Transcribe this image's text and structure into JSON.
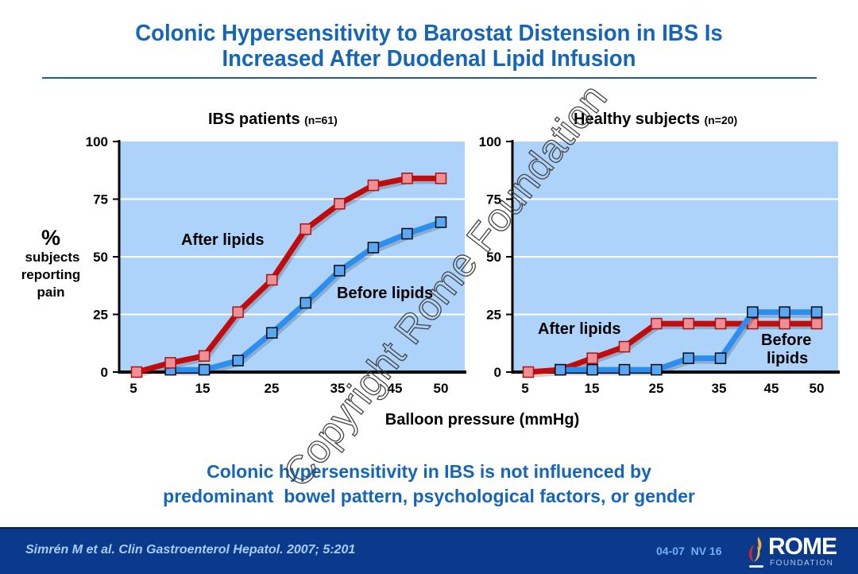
{
  "slide": {
    "title_line1": "Colonic Hypersensitivity to Barostat Distension in IBS Is",
    "title_line2": "Increased After Duodenal Lipid Infusion",
    "y_axis_label_symbol": "%",
    "y_axis_label_line1": "subjects",
    "y_axis_label_line2": "reporting",
    "y_axis_label_line3": "pain",
    "x_axis_label": "Balloon pressure (mmHg)",
    "conclusion_line1": "Colonic hypersensitivity in IBS is not influenced by",
    "conclusion_line2": "predominant  bowel pattern, psychological factors, or gender",
    "watermark": "Copyright Rome Foundation"
  },
  "footer": {
    "citation": "Simrén M et al. Clin Gastroenterol Hepatol. 2007; 5:201",
    "slide_code": "04-07  NV 16",
    "logo_name": "ROME",
    "logo_sub": "FOUNDATION"
  },
  "colors": {
    "title_blue": "#1565b8",
    "plot_bg": "#add3fb",
    "after_line": "#c30b0b",
    "after_marker": "#ee8f96",
    "before_line": "#2b8ef0",
    "before_marker": "#5aa8f5",
    "footer_bg": "#0b3a8c"
  },
  "chart_data": [
    {
      "type": "line",
      "title": "IBS patients",
      "subtitle": "(n=61)",
      "xlabel": "Balloon pressure (mmHg)",
      "ylabel": "% subjects reporting pain",
      "x": [
        5,
        10,
        15,
        20,
        25,
        30,
        35,
        40,
        45,
        50
      ],
      "x_tick_labels": [
        "5",
        "15",
        "25",
        "35",
        "45",
        "50"
      ],
      "y_ticks": [
        0,
        25,
        50,
        75,
        100
      ],
      "ylim": [
        0,
        100
      ],
      "grid": true,
      "series": [
        {
          "name": "After lipids",
          "values": [
            0,
            4,
            7,
            26,
            40,
            62,
            73,
            81,
            84,
            84
          ]
        },
        {
          "name": "Before lipids",
          "values": [
            null,
            1,
            1,
            5,
            17,
            30,
            44,
            54,
            60,
            65
          ]
        }
      ]
    },
    {
      "type": "line",
      "title": "Healthy subjects",
      "subtitle": "(n=20)",
      "xlabel": "Balloon pressure (mmHg)",
      "ylabel": "% subjects reporting pain",
      "x": [
        5,
        10,
        15,
        20,
        25,
        30,
        35,
        40,
        45,
        50
      ],
      "x_tick_labels": [
        "5",
        "15",
        "25",
        "35",
        "45",
        "50"
      ],
      "y_ticks": [
        0,
        25,
        50,
        75,
        100
      ],
      "ylim": [
        0,
        100
      ],
      "grid": true,
      "series": [
        {
          "name": "After lipids",
          "values": [
            0,
            1,
            6,
            11,
            21,
            21,
            21,
            21,
            21,
            21
          ]
        },
        {
          "name": "Before lipids",
          "values": [
            null,
            1,
            1,
            1,
            1,
            6,
            6,
            26,
            26,
            26
          ]
        }
      ]
    }
  ]
}
